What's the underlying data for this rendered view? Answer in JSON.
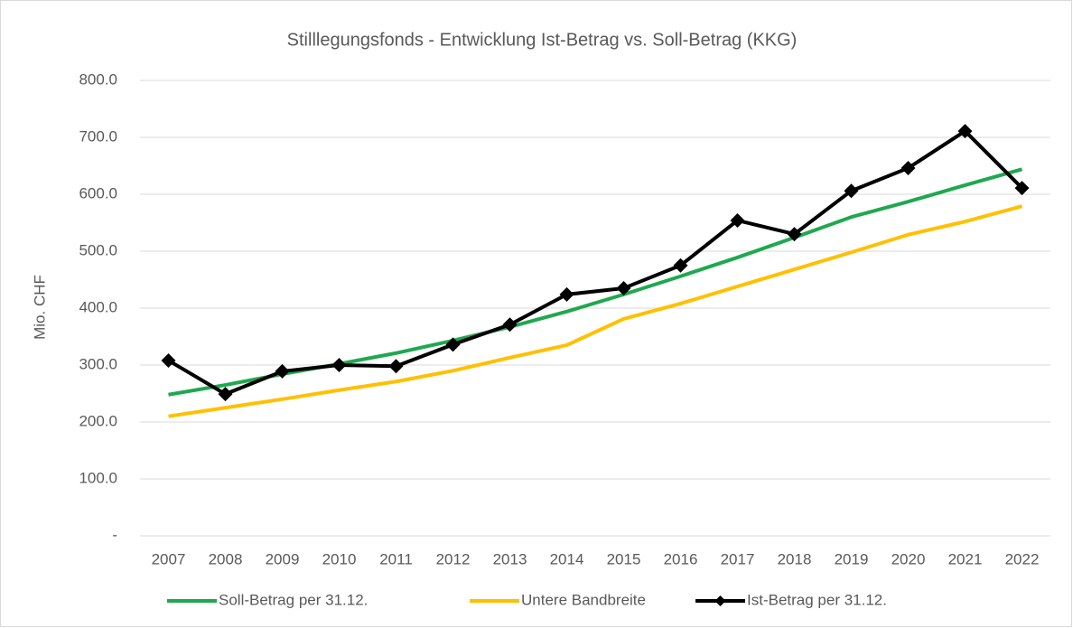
{
  "chart_data": {
    "type": "line",
    "title": "Stilllegungsfonds - Entwicklung Ist-Betrag vs. Soll-Betrag (KKG)",
    "y_label": "Mio. CHF",
    "categories": [
      "2007",
      "2008",
      "2009",
      "2010",
      "2011",
      "2012",
      "2013",
      "2014",
      "2015",
      "2016",
      "2017",
      "2018",
      "2019",
      "2020",
      "2021",
      "2022"
    ],
    "series": [
      {
        "name": "Soll-Betrag per 31.12.",
        "color": "#1fa84f",
        "values": [
          248,
          265,
          284,
          302,
          321,
          343,
          367,
          394,
          424,
          456,
          489,
          524,
          560,
          587,
          616,
          644
        ]
      },
      {
        "name": "Untere Bandbreite",
        "color": "#ffc000",
        "values": [
          210,
          225,
          240,
          256,
          271,
          290,
          313,
          335,
          381,
          408,
          438,
          468,
          498,
          529,
          552,
          579
        ]
      },
      {
        "name": "Ist-Betrag per 31.12.",
        "color": "#000000",
        "marker": "diamond",
        "values": [
          308,
          249,
          289,
          300,
          298,
          336,
          371,
          424,
          435,
          475,
          554,
          530,
          606,
          646,
          711,
          611
        ]
      }
    ],
    "ylim": [
      0,
      800
    ],
    "yticks": [
      {
        "value": 0,
        "label": "-"
      },
      {
        "value": 100,
        "label": "100.0"
      },
      {
        "value": 200,
        "label": "200.0"
      },
      {
        "value": 300,
        "label": "300.0"
      },
      {
        "value": 400,
        "label": "400.0"
      },
      {
        "value": 500,
        "label": "500.0"
      },
      {
        "value": 600,
        "label": "600.0"
      },
      {
        "value": 700,
        "label": "700.0"
      },
      {
        "value": 800,
        "label": "800.0"
      }
    ],
    "grid": true,
    "legend": "bottom"
  }
}
